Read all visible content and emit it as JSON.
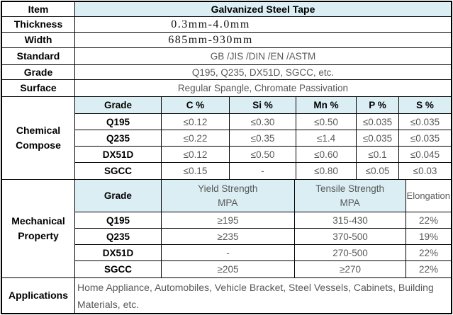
{
  "title": "Galvanized Steel Tape",
  "colors": {
    "header_bg": "#daeef3",
    "border": "#000000",
    "label_text": "#000000",
    "value_text": "#595959"
  },
  "spec_rows": [
    {
      "label": "Item",
      "value": "Galvanized Steel Tape"
    },
    {
      "label": "Thickness",
      "value": "0.3mm-4.0mm"
    },
    {
      "label": "Width",
      "value": "685mm-930mm"
    },
    {
      "label": "Standard",
      "value": "GB /JIS /DIN /EN /ASTM"
    },
    {
      "label": "Grade",
      "value": "Q195, Q235, DX51D, SGCC, etc."
    },
    {
      "label": "Surface",
      "value": "Regular Spangle, Chromate Passivation"
    }
  ],
  "chemical_compose": {
    "label": "Chemical Compose",
    "columns": [
      "Grade",
      "C %",
      "Si %",
      "Mn %",
      "P %",
      "S %"
    ],
    "rows": [
      {
        "grade": "Q195",
        "values": [
          "≤0.12",
          "≤0.30",
          "≤0.50",
          "≤0.035",
          "≤0.035"
        ]
      },
      {
        "grade": "Q235",
        "values": [
          "≤0.22",
          "≤0.35",
          "≤1.4",
          "≤0.035",
          "≤0.035"
        ]
      },
      {
        "grade": "DX51D",
        "values": [
          "≤0.12",
          "≤0.50",
          "≤0.60",
          "≤0.1",
          "≤0.045"
        ]
      },
      {
        "grade": "SGCC",
        "values": [
          "≤0.15",
          "-",
          "≤0.80",
          "≤0.05",
          "≤0.03"
        ]
      }
    ]
  },
  "mechanical_property": {
    "label": "Mechanical Property",
    "columns": [
      "Grade",
      "Yield Strength\nMPA",
      "Tensile Strength\nMPA",
      "Elongation"
    ],
    "rows": [
      {
        "grade": "Q195",
        "values": [
          "≥195",
          "315-430",
          "22%"
        ]
      },
      {
        "grade": "Q235",
        "values": [
          "≥235",
          "370-500",
          "19%"
        ]
      },
      {
        "grade": "DX51D",
        "values": [
          "-",
          "270-500",
          "22%"
        ]
      },
      {
        "grade": "SGCC",
        "values": [
          "≥205",
          "≥270",
          "22%"
        ]
      }
    ]
  },
  "applications": {
    "label": "Applications",
    "value": "Home Appliance, Automobiles, Vehicle Bracket, Steel Vessels, Cabinets, Building Materials, etc."
  }
}
